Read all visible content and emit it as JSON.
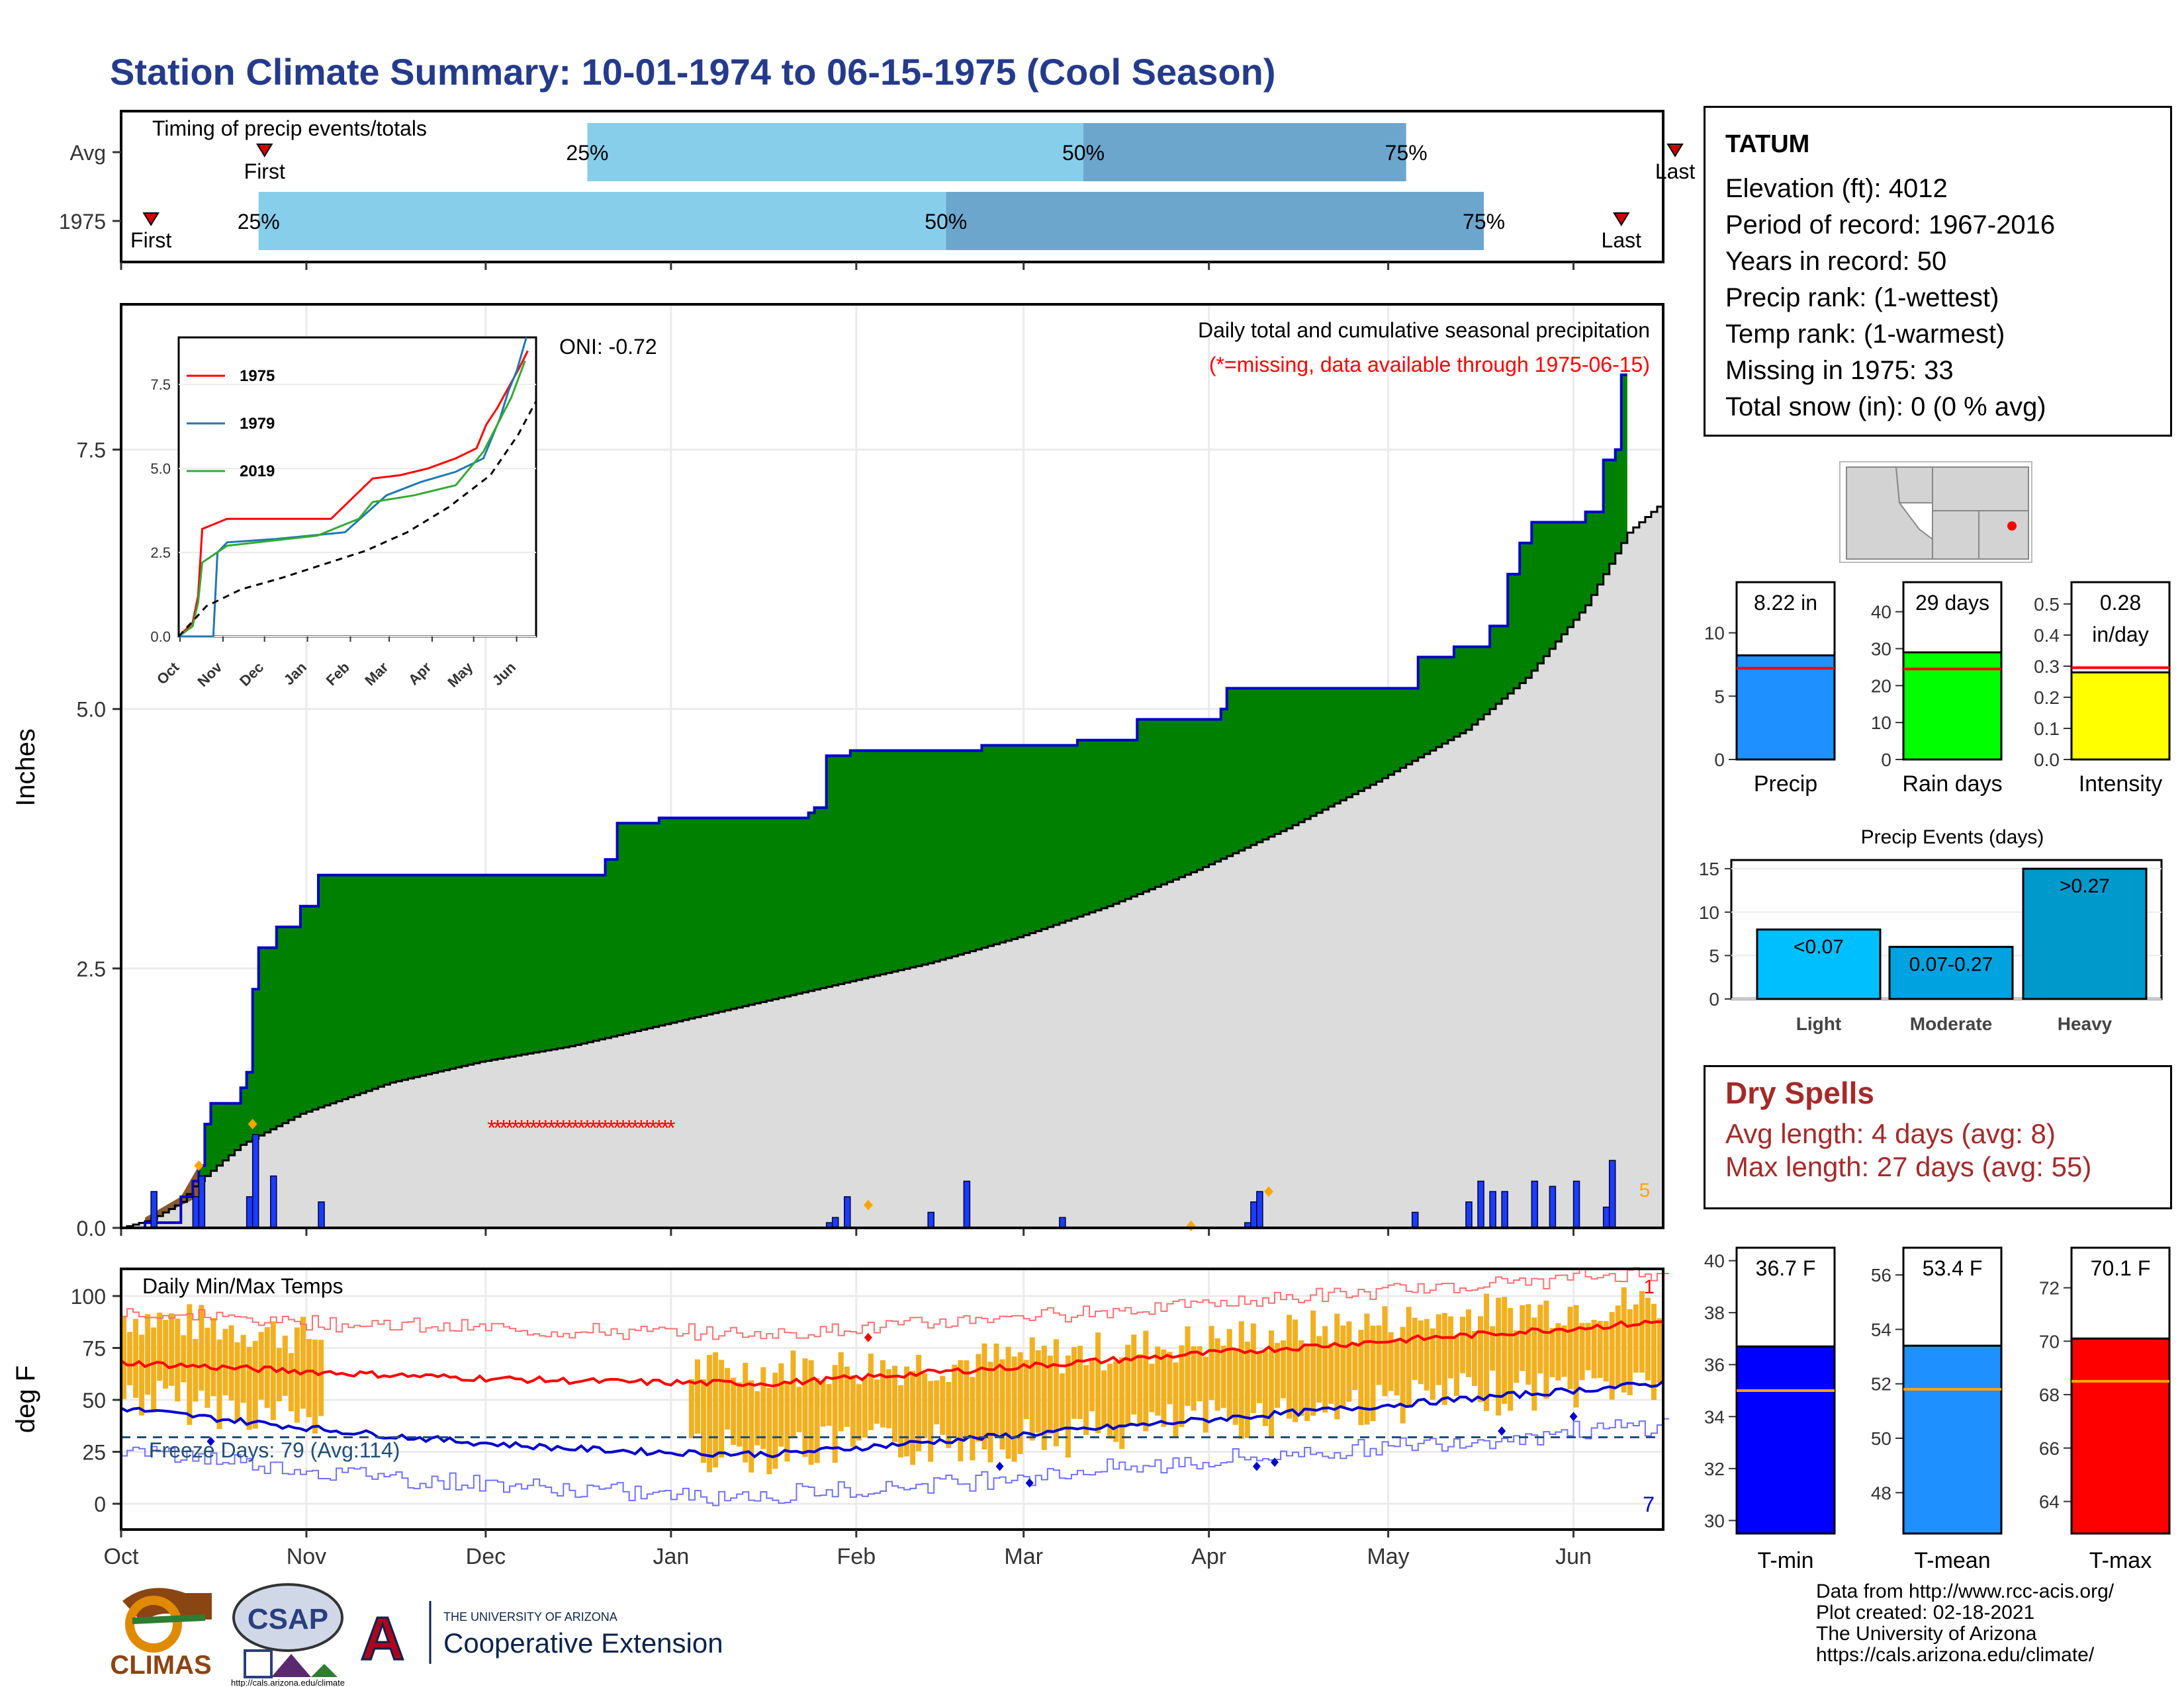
{
  "title": "Station Climate Summary: 10-01-1974 to 06-15-1975 (Cool Season)",
  "timing": {
    "label": "Timing of precip events/totals",
    "rows": [
      {
        "name": "Avg",
        "first": "First",
        "last": "Last",
        "p25": "25%",
        "p50": "50%",
        "p75": "75%",
        "first_day": 24,
        "p25_day": 78,
        "p50_day": 161,
        "p75_day": 215,
        "last_day": 260
      },
      {
        "name": "1975",
        "first": "First",
        "last": "Last",
        "p25": "25%",
        "p50": "50%",
        "p75": "75%",
        "first_day": 5,
        "p25_day": 23,
        "p50_day": 138,
        "p75_day": 228,
        "last_day": 251
      }
    ]
  },
  "colors": {
    "green": "#008000",
    "gray_fill": "#dcdcdc",
    "blue_line": "#0000cc",
    "bar_blue": "#1a3cff",
    "light_blue": "#87ceeb",
    "mid_blue": "#6ca6cd",
    "red": "#ff0000",
    "gold": "#f0b020",
    "title_blue": "#243b8c",
    "dry_red": "#a52a2a"
  },
  "main_chart": {
    "ylabel": "Inches",
    "yticks": [
      "0.0",
      "2.5",
      "5.0",
      "7.5"
    ],
    "ylim": [
      0,
      8.9
    ],
    "oni": "ONI: -0.72",
    "note1": "Daily total and cumulative seasonal precipitation",
    "note2": "(*=missing, data available through 1975-06-15)",
    "marker_5": "5",
    "missing_period_days": [
      62,
      92
    ],
    "cumulative_1975": [
      [
        0,
        0
      ],
      [
        4,
        0.05
      ],
      [
        10,
        0.3
      ],
      [
        12,
        0.45
      ],
      [
        13,
        0.6
      ],
      [
        14,
        1.0
      ],
      [
        15,
        1.2
      ],
      [
        20,
        1.35
      ],
      [
        21,
        1.5
      ],
      [
        22,
        2.3
      ],
      [
        23,
        2.7
      ],
      [
        26,
        2.9
      ],
      [
        30,
        3.1
      ],
      [
        33,
        3.4
      ],
      [
        70,
        3.4
      ],
      [
        81,
        3.55
      ],
      [
        83,
        3.9
      ],
      [
        90,
        3.95
      ],
      [
        115,
        4.0
      ],
      [
        116,
        4.05
      ],
      [
        118,
        4.55
      ],
      [
        122,
        4.6
      ],
      [
        144,
        4.65
      ],
      [
        160,
        4.7
      ],
      [
        170,
        4.9
      ],
      [
        184,
        5.0
      ],
      [
        185,
        5.2
      ],
      [
        213,
        5.2
      ],
      [
        217,
        5.5
      ],
      [
        223,
        5.6
      ],
      [
        229,
        5.8
      ],
      [
        232,
        6.3
      ],
      [
        234,
        6.6
      ],
      [
        236,
        6.8
      ],
      [
        245,
        6.9
      ],
      [
        248,
        7.4
      ],
      [
        250,
        7.5
      ],
      [
        251,
        8.22
      ]
    ],
    "cumulative_avg": [
      [
        0,
        0
      ],
      [
        5,
        0.08
      ],
      [
        10,
        0.25
      ],
      [
        12,
        0.4
      ],
      [
        20,
        0.8
      ],
      [
        30,
        1.1
      ],
      [
        45,
        1.4
      ],
      [
        60,
        1.6
      ],
      [
        75,
        1.75
      ],
      [
        90,
        1.95
      ],
      [
        105,
        2.15
      ],
      [
        120,
        2.35
      ],
      [
        135,
        2.55
      ],
      [
        150,
        2.8
      ],
      [
        165,
        3.1
      ],
      [
        180,
        3.45
      ],
      [
        195,
        3.85
      ],
      [
        210,
        4.3
      ],
      [
        225,
        4.8
      ],
      [
        235,
        5.3
      ],
      [
        245,
        6.0
      ],
      [
        252,
        6.7
      ],
      [
        257,
        6.95
      ]
    ],
    "daily_bars": [
      [
        5,
        0.35
      ],
      [
        12,
        0.3
      ],
      [
        13,
        0.5
      ],
      [
        21,
        0.3
      ],
      [
        22,
        0.9
      ],
      [
        25,
        0.5
      ],
      [
        33,
        0.25
      ],
      [
        118,
        0.05
      ],
      [
        119,
        0.1
      ],
      [
        121,
        0.3
      ],
      [
        135,
        0.15
      ],
      [
        141,
        0.45
      ],
      [
        157,
        0.1
      ],
      [
        188,
        0.05
      ],
      [
        189,
        0.25
      ],
      [
        190,
        0.35
      ],
      [
        216,
        0.15
      ],
      [
        225,
        0.25
      ],
      [
        227,
        0.45
      ],
      [
        229,
        0.35
      ],
      [
        231,
        0.35
      ],
      [
        236,
        0.45
      ],
      [
        239,
        0.4
      ],
      [
        243,
        0.45
      ],
      [
        248,
        0.2
      ],
      [
        249,
        0.65
      ]
    ],
    "xticks": [
      "Oct",
      "Nov",
      "Dec",
      "Jan",
      "Feb",
      "Mar",
      "Apr",
      "May",
      "Jun"
    ],
    "xtick_days": [
      0,
      31,
      61,
      92,
      123,
      151,
      182,
      212,
      243
    ]
  },
  "inset": {
    "legend": [
      "1975",
      "1979",
      "2019"
    ],
    "yticks": [
      "0.0",
      "2.5",
      "5.0",
      "7.5"
    ],
    "xticks": [
      "Oct",
      "Nov",
      "Dec",
      "Jan",
      "Feb",
      "Mar",
      "Apr",
      "May",
      "Jun"
    ]
  },
  "temps": {
    "label": "Daily Min/Max Temps",
    "ylabel": "deg F",
    "yticks": [
      "0",
      "25",
      "50",
      "75",
      "100"
    ],
    "freeze": "Freeze Days: 79 (Avg:114)",
    "corner_top": "1",
    "corner_bottom": "7"
  },
  "info": {
    "station": "TATUM",
    "lines": [
      "Elevation (ft): 4012",
      "Period of record: 1967-2016",
      "Years in record: 50",
      "Precip rank:  (1-wettest)",
      "Temp rank:  (1-warmest)",
      "Missing in 1975: 33",
      "Total snow (in): 0 (0 % avg)"
    ]
  },
  "small_bars": [
    {
      "name": "Precip",
      "value_label": "8.22 in",
      "value": 8.22,
      "avg": 7.2,
      "ymax": 14,
      "yticks": [
        "0",
        "5",
        "10"
      ],
      "tick_vals": [
        0,
        5,
        10
      ],
      "color": "#1e90ff"
    },
    {
      "name": "Rain days",
      "value_label": "29 days",
      "value": 29,
      "avg": 24.5,
      "ymax": 48,
      "yticks": [
        "0",
        "10",
        "20",
        "30",
        "40"
      ],
      "tick_vals": [
        0,
        10,
        20,
        30,
        40
      ],
      "color": "#00ff00"
    },
    {
      "name": "Intensity",
      "value_label": "0.28",
      "value_label2": "in/day",
      "value": 0.28,
      "avg": 0.295,
      "ymax": 0.57,
      "yticks": [
        "0.0",
        "0.1",
        "0.2",
        "0.3",
        "0.4",
        "0.5"
      ],
      "tick_vals": [
        0,
        0.1,
        0.2,
        0.3,
        0.4,
        0.5
      ],
      "color": "#ffff00"
    }
  ],
  "events": {
    "title": "Precip Events (days)",
    "categories": [
      "Light",
      "Moderate",
      "Heavy"
    ],
    "labels": [
      "<0.07",
      "0.07-0.27",
      ">0.27"
    ],
    "values": [
      8,
      6,
      15
    ],
    "yticks": [
      "0",
      "5",
      "10",
      "15"
    ],
    "colors": [
      "#00bfff",
      "#00a2e0",
      "#0099cc"
    ]
  },
  "dry": {
    "title": "Dry Spells",
    "avg": "Avg length: 4 days (avg: 8)",
    "max": "Max length: 27 days (avg: 55)"
  },
  "temp_bars": [
    {
      "name": "T-min",
      "value_label": "36.7 F",
      "value": 36.7,
      "avg": 35.0,
      "ymin": 29.5,
      "ymax": 40.5,
      "yticks": [
        "30",
        "32",
        "34",
        "36",
        "38",
        "40"
      ],
      "tick_vals": [
        30,
        32,
        34,
        36,
        38,
        40
      ],
      "color": "#0000ff"
    },
    {
      "name": "T-mean",
      "value_label": "53.4 F",
      "value": 53.4,
      "avg": 51.8,
      "ymin": 46.5,
      "ymax": 57,
      "yticks": [
        "48",
        "50",
        "52",
        "54",
        "56"
      ],
      "tick_vals": [
        48,
        50,
        52,
        54,
        56
      ],
      "color": "#1e90ff"
    },
    {
      "name": "T-max",
      "value_label": "70.1 F",
      "value": 70.1,
      "avg": 68.5,
      "ymin": 62.8,
      "ymax": 73.5,
      "yticks": [
        "64",
        "66",
        "68",
        "70",
        "72"
      ],
      "tick_vals": [
        64,
        66,
        68,
        70,
        72
      ],
      "color": "#ff0000"
    }
  ],
  "credits": [
    "Data from http://www.rcc-acis.org/",
    "Plot created: 02-18-2021",
    "The University of Arizona",
    "https://cals.arizona.edu/climate/"
  ],
  "logos": {
    "climas": "CLIMAS",
    "csap": "CSAP",
    "csap_url": "http://cals.arizona.edu/climate",
    "ua_small": "THE UNIVERSITY OF ARIZONA",
    "ua_big": "Cooperative Extension",
    "ua_letter": "A"
  }
}
